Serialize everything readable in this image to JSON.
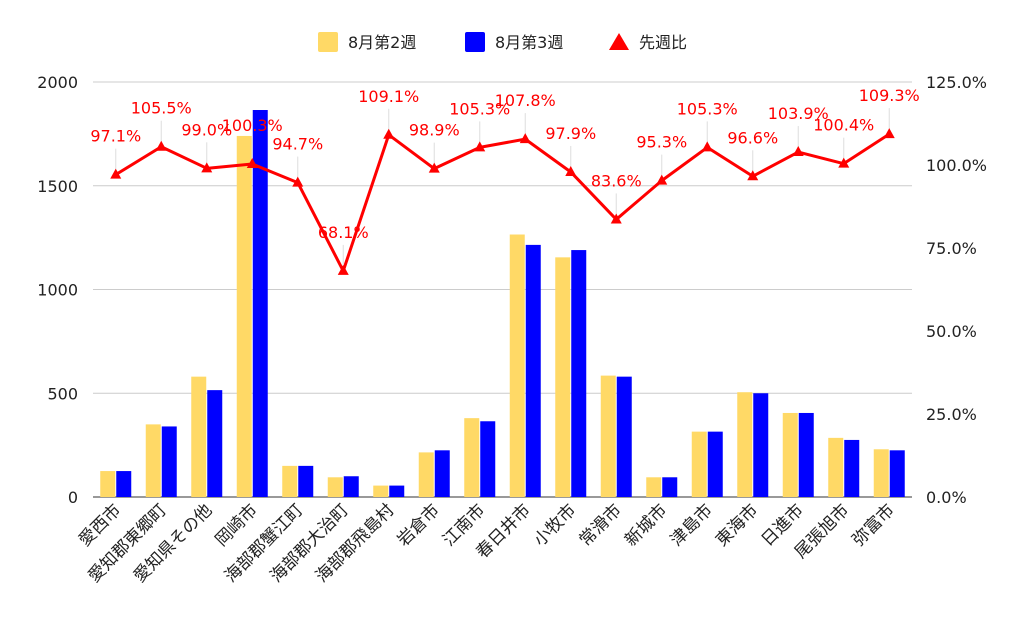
{
  "chart_data": {
    "type": "bar",
    "categories": [
      "愛西市",
      "愛知郡東郷町",
      "愛知県その他",
      "岡崎市",
      "海部郡蟹江町",
      "海部郡大治町",
      "海部郡飛島村",
      "岩倉市",
      "江南市",
      "春日井市",
      "小牧市",
      "常滑市",
      "新城市",
      "津島市",
      "東海市",
      "日進市",
      "尾張旭市",
      "弥富市"
    ],
    "series": [
      {
        "name": "8月第2週",
        "type": "bar",
        "axis": "left",
        "color": "#ffd966",
        "values": [
          125,
          350,
          580,
          1740,
          150,
          95,
          55,
          215,
          380,
          1265,
          1155,
          585,
          95,
          315,
          505,
          405,
          285,
          230
        ]
      },
      {
        "name": "8月第3週",
        "type": "bar",
        "axis": "left",
        "color": "#0000ff",
        "values": [
          125,
          340,
          515,
          1865,
          150,
          100,
          55,
          225,
          365,
          1215,
          1190,
          580,
          95,
          315,
          500,
          405,
          275,
          225
        ]
      },
      {
        "name": "先週比",
        "type": "line",
        "axis": "right",
        "color": "#ff0000",
        "marker": "triangle",
        "values": [
          97.1,
          105.5,
          99.0,
          100.3,
          94.7,
          68.1,
          109.1,
          98.9,
          105.3,
          107.8,
          97.9,
          83.6,
          95.3,
          105.3,
          96.6,
          103.9,
          100.4,
          109.3
        ],
        "labels": [
          "97.1%",
          "105.5%",
          "99.0%",
          "100.3%",
          "94.7%",
          "68.1%",
          "109.1%",
          "98.9%",
          "105.3%",
          "107.8%",
          "97.9%",
          "83.6%",
          "95.3%",
          "105.3%",
          "96.6%",
          "103.9%",
          "100.4%",
          "109.3%"
        ]
      }
    ],
    "ylim_left": [
      0,
      2000
    ],
    "yticks_left": [
      "0",
      "500",
      "1000",
      "1500",
      "2000"
    ],
    "ylim_right": [
      0,
      125
    ],
    "yticks_right": [
      "0.0%",
      "25.0%",
      "50.0%",
      "75.0%",
      "100.0%",
      "125.0%"
    ],
    "grid": true,
    "legend_position": "top",
    "title": "",
    "xlabel": "",
    "ylabel": ""
  }
}
